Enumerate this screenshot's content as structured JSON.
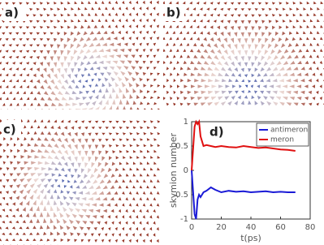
{
  "panels": [
    {
      "label": "a)"
    },
    {
      "label": "b)"
    },
    {
      "label": "c)"
    }
  ],
  "chart_data": {
    "type": "line",
    "label": "d)",
    "x_label": "t(ps)",
    "y_label": "skymion number",
    "x": [
      0,
      2,
      3,
      4,
      5,
      6,
      8,
      10,
      13,
      16,
      20,
      25,
      30,
      35,
      40,
      45,
      50,
      55,
      60,
      65,
      70
    ],
    "series": [
      {
        "name": "antimeron",
        "color": "#1a1ad6",
        "values": [
          0,
          -0.9,
          -1,
          -0.6,
          -0.5,
          -0.55,
          -0.45,
          -0.42,
          -0.35,
          -0.4,
          -0.45,
          -0.42,
          -0.44,
          -0.43,
          -0.45,
          -0.44,
          -0.43,
          -0.45,
          -0.44,
          -0.45,
          -0.45
        ]
      },
      {
        "name": "meron",
        "color": "#e01010",
        "values": [
          0,
          0.9,
          1,
          0.95,
          1,
          0.7,
          0.5,
          0.52,
          0.5,
          0.48,
          0.5,
          0.48,
          0.47,
          0.5,
          0.48,
          0.46,
          0.47,
          0.45,
          0.43,
          0.42,
          0.4
        ]
      }
    ],
    "xlim": [
      0,
      80
    ],
    "xticks": [
      0,
      20,
      40,
      60,
      80
    ],
    "ylim": [
      -1,
      1
    ],
    "yticks": [
      -1,
      -0.5,
      0,
      0.5,
      1
    ],
    "legend": "upper right"
  }
}
